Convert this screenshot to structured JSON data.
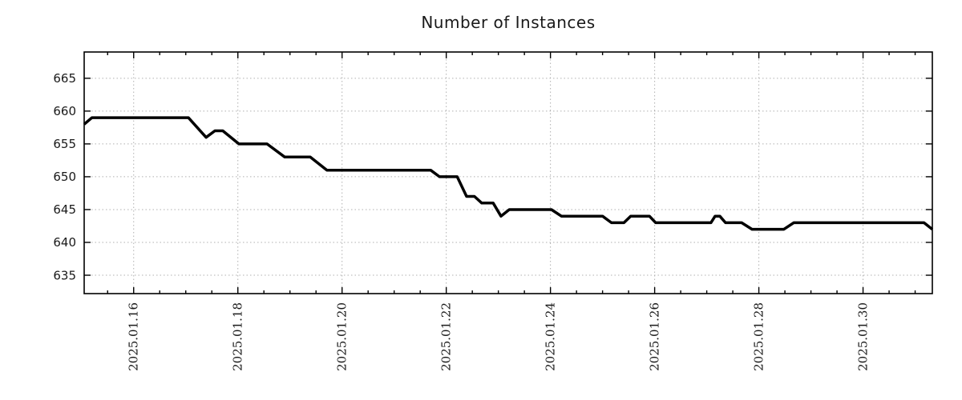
{
  "chart_data": {
    "type": "line",
    "title": "Number of Instances",
    "legend": "none",
    "grid": "dotted",
    "series": [
      {
        "name": "instances",
        "color": "#000000",
        "points_note": "t = days since 2025-01-15 00:00, v = number of instances",
        "points": [
          [
            0.05,
            658
          ],
          [
            0.2,
            659
          ],
          [
            2.05,
            659
          ],
          [
            2.39,
            656
          ],
          [
            2.56,
            657
          ],
          [
            2.71,
            657
          ],
          [
            3.02,
            655
          ],
          [
            3.56,
            655
          ],
          [
            3.9,
            653
          ],
          [
            4.39,
            653
          ],
          [
            4.71,
            651
          ],
          [
            6.7,
            651
          ],
          [
            6.87,
            650
          ],
          [
            7.21,
            650
          ],
          [
            7.39,
            647
          ],
          [
            7.54,
            647
          ],
          [
            7.68,
            646
          ],
          [
            7.9,
            646
          ],
          [
            8.05,
            644
          ],
          [
            8.21,
            645
          ],
          [
            9.02,
            645
          ],
          [
            9.21,
            644
          ],
          [
            10.0,
            644
          ],
          [
            10.17,
            643
          ],
          [
            10.41,
            643
          ],
          [
            10.54,
            644
          ],
          [
            10.9,
            644
          ],
          [
            11.02,
            643
          ],
          [
            12.08,
            643
          ],
          [
            12.16,
            644
          ],
          [
            12.25,
            644
          ],
          [
            12.36,
            643
          ],
          [
            12.67,
            643
          ],
          [
            12.87,
            642
          ],
          [
            13.48,
            642
          ],
          [
            13.67,
            643
          ],
          [
            16.17,
            643
          ],
          [
            16.33,
            642
          ]
        ]
      }
    ],
    "x_axis": {
      "lim": [
        0.05,
        16.33
      ],
      "major_ticks": [
        {
          "t": 1,
          "label": "2025.01.16"
        },
        {
          "t": 3,
          "label": "2025.01.18"
        },
        {
          "t": 5,
          "label": "2025.01.20"
        },
        {
          "t": 7,
          "label": "2025.01.22"
        },
        {
          "t": 9,
          "label": "2025.01.24"
        },
        {
          "t": 11,
          "label": "2025.01.26"
        },
        {
          "t": 13,
          "label": "2025.01.28"
        },
        {
          "t": 15,
          "label": "2025.01.30"
        }
      ],
      "minor_step": 0.5,
      "label_rotation_deg": 90
    },
    "y_axis": {
      "lim": [
        632.2,
        669.0
      ],
      "ticks": [
        635,
        640,
        645,
        650,
        655,
        660,
        665
      ]
    },
    "colors": {
      "line": "#000000",
      "border": "#000000",
      "grid": "#b0b0b0",
      "text": "#1a1a1a",
      "background": "#ffffff"
    }
  }
}
